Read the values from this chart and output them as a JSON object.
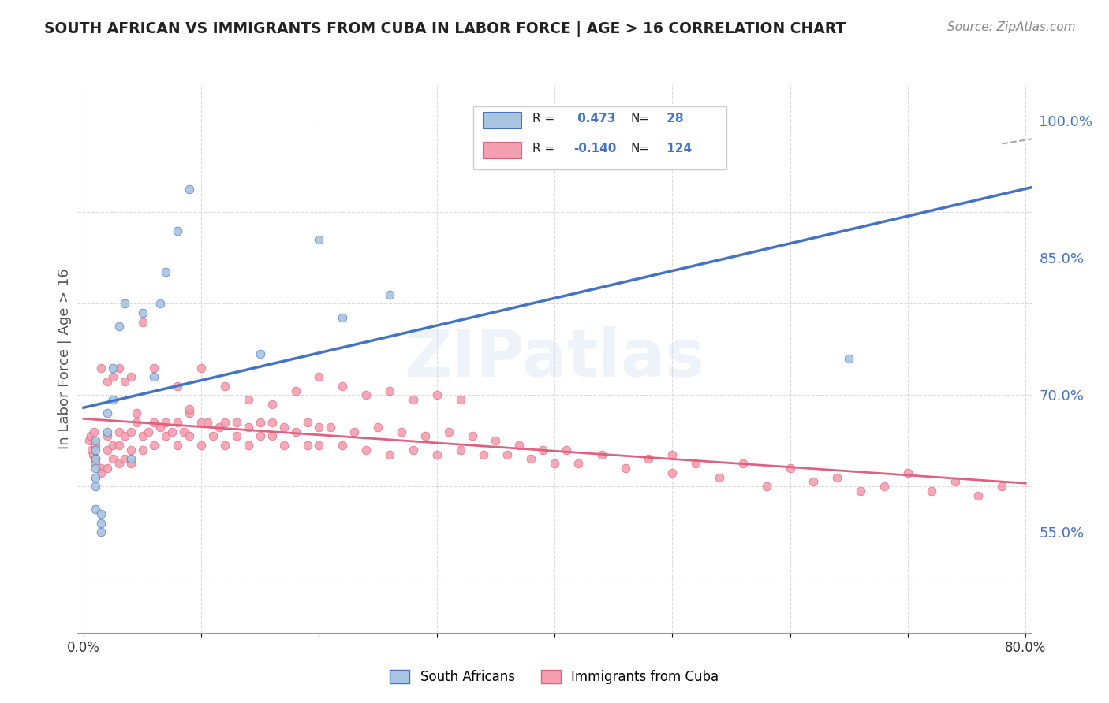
{
  "title": "SOUTH AFRICAN VS IMMIGRANTS FROM CUBA IN LABOR FORCE | AGE > 16 CORRELATION CHART",
  "source": "Source: ZipAtlas.com",
  "xlabel": "",
  "ylabel": "In Labor Force | Age > 16",
  "legend_label_1": "South Africans",
  "legend_label_2": "Immigrants from Cuba",
  "r1": 0.473,
  "n1": 28,
  "r2": -0.14,
  "n2": 124,
  "xlim": [
    0.0,
    0.8
  ],
  "ylim": [
    0.44,
    1.04
  ],
  "right_yticks": [
    0.55,
    0.7,
    0.85,
    1.0
  ],
  "right_yticklabels": [
    "55.0%",
    "70.0%",
    "85.0%",
    "100.0%"
  ],
  "bottom_xticks": [
    0.0,
    0.1,
    0.2,
    0.3,
    0.4,
    0.5,
    0.6,
    0.7,
    0.8
  ],
  "bottom_xticklabels": [
    "0.0%",
    "",
    "",
    "",
    "",
    "",
    "",
    "",
    "80.0%"
  ],
  "color_sa": "#a8c4e0",
  "color_cuba": "#f4a0b0",
  "color_line_sa": "#4472c4",
  "color_line_cuba": "#e06080",
  "background_color": "#ffffff",
  "watermark": "ZIPatlas",
  "sa_x": [
    0.01,
    0.01,
    0.01,
    0.01,
    0.01,
    0.01,
    0.01,
    0.015,
    0.015,
    0.015,
    0.02,
    0.02,
    0.025,
    0.025,
    0.03,
    0.035,
    0.04,
    0.05,
    0.06,
    0.065,
    0.07,
    0.08,
    0.09,
    0.15,
    0.2,
    0.22,
    0.26,
    0.65
  ],
  "sa_y": [
    0.65,
    0.64,
    0.63,
    0.62,
    0.61,
    0.6,
    0.575,
    0.57,
    0.56,
    0.55,
    0.68,
    0.66,
    0.73,
    0.695,
    0.775,
    0.8,
    0.63,
    0.79,
    0.72,
    0.8,
    0.835,
    0.88,
    0.925,
    0.745,
    0.87,
    0.785,
    0.81,
    0.74
  ],
  "cuba_x": [
    0.005,
    0.006,
    0.007,
    0.008,
    0.009,
    0.01,
    0.01,
    0.01,
    0.015,
    0.015,
    0.02,
    0.02,
    0.02,
    0.025,
    0.025,
    0.03,
    0.03,
    0.03,
    0.035,
    0.035,
    0.04,
    0.04,
    0.04,
    0.045,
    0.05,
    0.05,
    0.055,
    0.06,
    0.06,
    0.065,
    0.07,
    0.07,
    0.075,
    0.08,
    0.08,
    0.085,
    0.09,
    0.09,
    0.1,
    0.1,
    0.105,
    0.11,
    0.115,
    0.12,
    0.12,
    0.13,
    0.13,
    0.14,
    0.14,
    0.15,
    0.15,
    0.16,
    0.16,
    0.17,
    0.17,
    0.18,
    0.19,
    0.19,
    0.2,
    0.2,
    0.21,
    0.22,
    0.23,
    0.24,
    0.25,
    0.26,
    0.27,
    0.28,
    0.29,
    0.3,
    0.31,
    0.32,
    0.33,
    0.34,
    0.35,
    0.36,
    0.37,
    0.38,
    0.39,
    0.4,
    0.41,
    0.42,
    0.44,
    0.46,
    0.48,
    0.5,
    0.52,
    0.54,
    0.56,
    0.58,
    0.6,
    0.62,
    0.64,
    0.66,
    0.68,
    0.7,
    0.72,
    0.74,
    0.76,
    0.78,
    0.015,
    0.02,
    0.025,
    0.03,
    0.035,
    0.04,
    0.045,
    0.05,
    0.06,
    0.08,
    0.09,
    0.1,
    0.12,
    0.14,
    0.16,
    0.18,
    0.2,
    0.22,
    0.24,
    0.26,
    0.28,
    0.3,
    0.32,
    0.5
  ],
  "cuba_y": [
    0.65,
    0.655,
    0.64,
    0.635,
    0.66,
    0.645,
    0.63,
    0.625,
    0.62,
    0.615,
    0.655,
    0.64,
    0.62,
    0.645,
    0.63,
    0.66,
    0.645,
    0.625,
    0.655,
    0.63,
    0.66,
    0.64,
    0.625,
    0.67,
    0.655,
    0.64,
    0.66,
    0.67,
    0.645,
    0.665,
    0.67,
    0.655,
    0.66,
    0.67,
    0.645,
    0.66,
    0.68,
    0.655,
    0.67,
    0.645,
    0.67,
    0.655,
    0.665,
    0.67,
    0.645,
    0.67,
    0.655,
    0.665,
    0.645,
    0.67,
    0.655,
    0.67,
    0.655,
    0.665,
    0.645,
    0.66,
    0.67,
    0.645,
    0.665,
    0.645,
    0.665,
    0.645,
    0.66,
    0.64,
    0.665,
    0.635,
    0.66,
    0.64,
    0.655,
    0.635,
    0.66,
    0.64,
    0.655,
    0.635,
    0.65,
    0.635,
    0.645,
    0.63,
    0.64,
    0.625,
    0.64,
    0.625,
    0.635,
    0.62,
    0.63,
    0.615,
    0.625,
    0.61,
    0.625,
    0.6,
    0.62,
    0.605,
    0.61,
    0.595,
    0.6,
    0.615,
    0.595,
    0.605,
    0.59,
    0.6,
    0.73,
    0.715,
    0.72,
    0.73,
    0.715,
    0.72,
    0.68,
    0.78,
    0.73,
    0.71,
    0.685,
    0.73,
    0.71,
    0.695,
    0.69,
    0.705,
    0.72,
    0.71,
    0.7,
    0.705,
    0.695,
    0.7,
    0.695,
    0.635
  ]
}
